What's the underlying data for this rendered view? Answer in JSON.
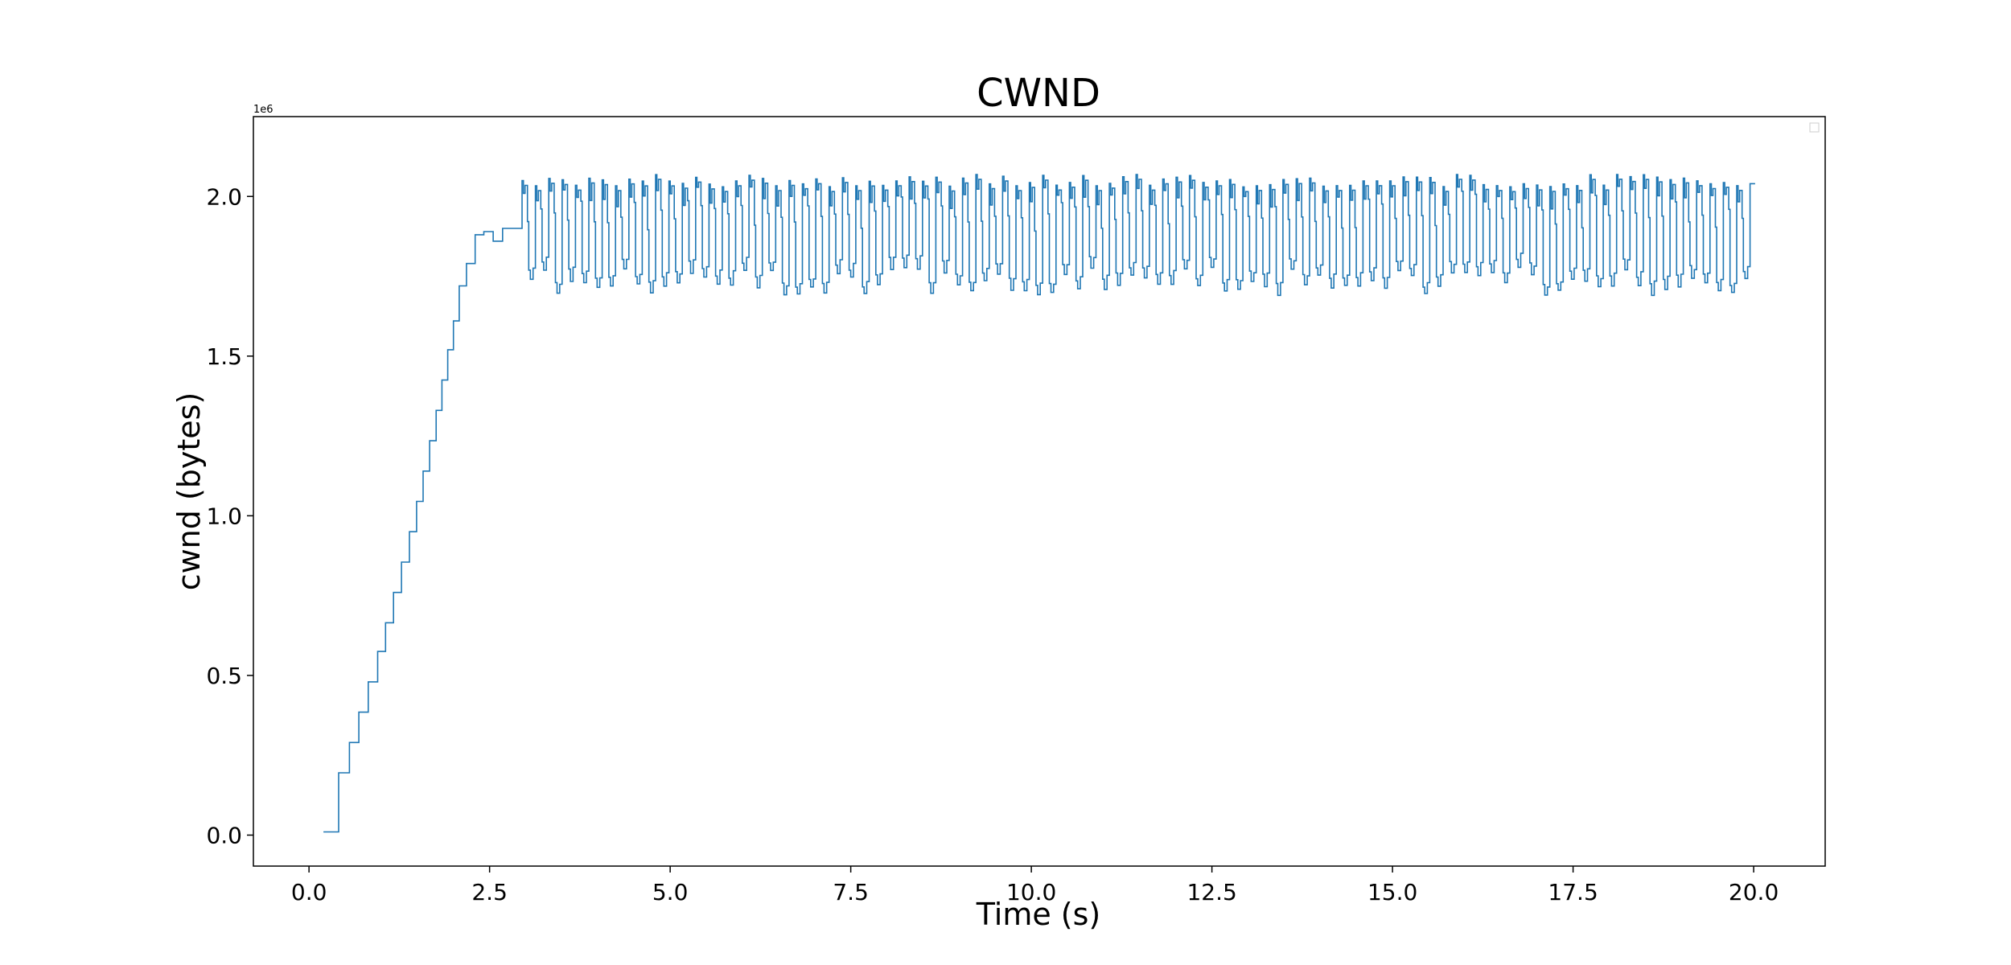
{
  "chart_data": {
    "type": "line",
    "title": "CWND",
    "xlabel": "Time (s)",
    "ylabel": "cwnd (bytes)",
    "y_offset_label": "1e6",
    "xlim": [
      -0.77,
      20.99
    ],
    "ylim": [
      -97000,
      2250000
    ],
    "x_ticks": [
      0.0,
      2.5,
      5.0,
      7.5,
      10.0,
      12.5,
      15.0,
      17.5,
      20.0
    ],
    "x_tick_labels": [
      "0.0",
      "2.5",
      "5.0",
      "7.5",
      "10.0",
      "12.5",
      "15.0",
      "17.5",
      "20.0"
    ],
    "y_ticks": [
      0,
      500000,
      1000000,
      1500000,
      2000000
    ],
    "y_tick_labels": [
      "0.0",
      "0.5",
      "1.0",
      "1.5",
      "2.0"
    ],
    "grid": false,
    "legend": "top-right (empty)",
    "series": [
      {
        "color": "#1f77b4",
        "line": "step",
        "slow_start": {
          "x": [
            0.2,
            0.41,
            0.56,
            0.69,
            0.82,
            0.95,
            1.06,
            1.17,
            1.28,
            1.39,
            1.49,
            1.58,
            1.67,
            1.76,
            1.84,
            1.92,
            2.0,
            2.08,
            2.18,
            2.3,
            2.42,
            2.55,
            2.68
          ],
          "y": [
            10000,
            195000,
            290000,
            385000,
            480000,
            575000,
            665000,
            760000,
            855000,
            950000,
            1045000,
            1140000,
            1235000,
            1330000,
            1425000,
            1520000,
            1610000,
            1720000,
            1790000,
            1880000,
            1890000,
            1860000,
            1900000
          ]
        },
        "oscillation": {
          "x_start": 2.95,
          "x_end": 19.95,
          "cycles": 92,
          "y_high_values": [
            2030000,
            2070000
          ],
          "y_low_values": [
            1690000,
            1780000
          ],
          "end_value": 2040000
        }
      }
    ]
  }
}
